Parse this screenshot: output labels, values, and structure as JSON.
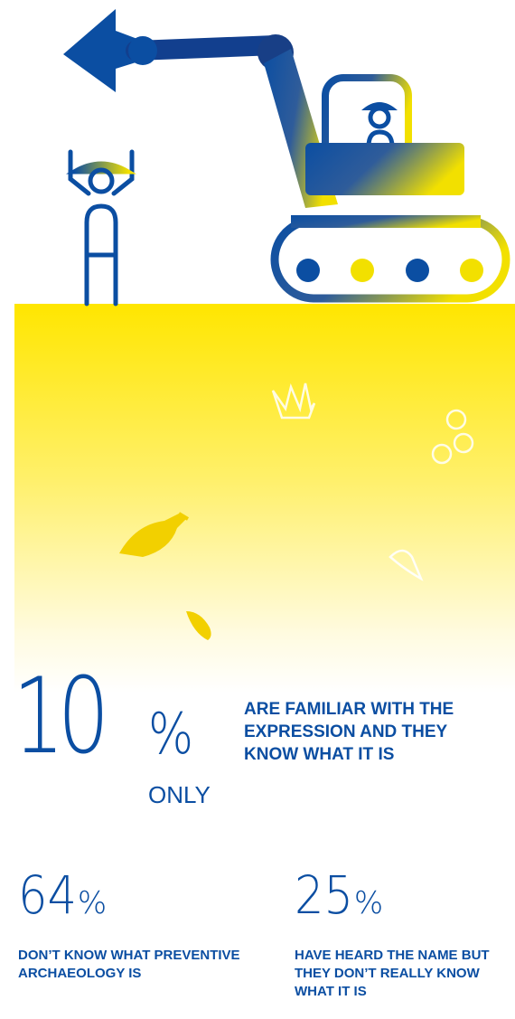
{
  "colors": {
    "blue": "#0b4ea2",
    "yellow": "#ffe600"
  },
  "illustration": {
    "icons": [
      "archaeologist-icon",
      "excavator-icon",
      "crown-icon",
      "coins-icon",
      "amphora-icon",
      "pottery-shard-icon",
      "stone-tool-icon"
    ]
  },
  "main_stat": {
    "value": "10",
    "unit": "%",
    "qualifier": "ONLY",
    "description": "ARE FAMILIAR WITH THE EXPRESSION AND THEY KNOW WHAT IT IS"
  },
  "stats": [
    {
      "value": "64",
      "unit": "%",
      "description": "DON’T KNOW WHAT PREVENTIVE ARCHAEOLOGY IS"
    },
    {
      "value": "25",
      "unit": "%",
      "description": "HAVE HEARD THE NAME BUT THEY DON’T REALLY KNOW WHAT IT IS"
    }
  ]
}
